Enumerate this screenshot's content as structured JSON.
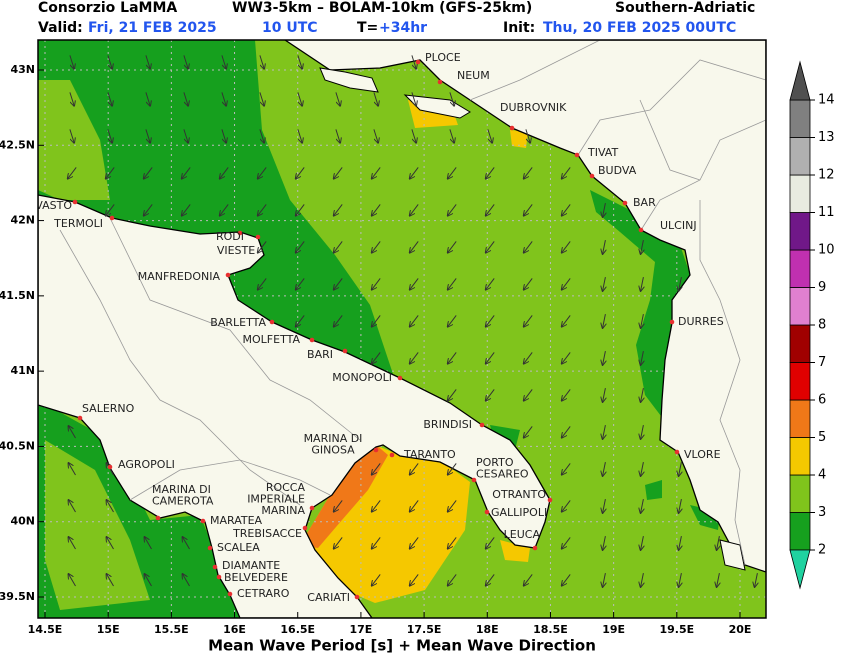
{
  "header": {
    "left": "Consorzio LaMMA",
    "center": "WW3-5km – BOLAM-10km (GFS-25km)",
    "right": "Southern-Adriatic",
    "valid_label": "Valid:",
    "valid_date": "Fri, 21 FEB 2025",
    "valid_time": "10 UTC",
    "lead_label": "T=",
    "lead": "+34hr",
    "init_label": "Init:",
    "init": "Thu, 20 FEB 2025 00UTC"
  },
  "map": {
    "grid": true,
    "lat_ticks": [
      {
        "value": 43,
        "label": "43N"
      },
      {
        "value": 42.5,
        "label": "42.5N"
      },
      {
        "value": 42,
        "label": "42N"
      },
      {
        "value": 41.5,
        "label": "41.5N"
      },
      {
        "value": 41,
        "label": "41N"
      },
      {
        "value": 40.5,
        "label": "40.5N"
      },
      {
        "value": 40,
        "label": "40N"
      },
      {
        "value": 39.5,
        "label": "39.5N"
      }
    ],
    "lon_ticks": [
      {
        "value": 14.5,
        "label": "14.5E"
      },
      {
        "value": 15,
        "label": "15E"
      },
      {
        "value": 15.5,
        "label": "15.5E"
      },
      {
        "value": 16,
        "label": "16E"
      },
      {
        "value": 16.5,
        "label": "16.5E"
      },
      {
        "value": 17,
        "label": "17E"
      },
      {
        "value": 17.5,
        "label": "17.5E"
      },
      {
        "value": 18,
        "label": "18E"
      },
      {
        "value": 18.5,
        "label": "18.5E"
      },
      {
        "value": 19,
        "label": "19E"
      },
      {
        "value": 19.5,
        "label": "19.5E"
      },
      {
        "value": 20,
        "label": "20E"
      }
    ]
  },
  "cities": [
    {
      "lines": [
        "PLOCE"
      ]
    },
    {
      "lines": [
        "NEUM"
      ]
    },
    {
      "lines": [
        "DUBROVNIK"
      ]
    },
    {
      "lines": [
        "TIVAT"
      ]
    },
    {
      "lines": [
        "BUDVA"
      ]
    },
    {
      "lines": [
        "BAR"
      ]
    },
    {
      "lines": [
        "ULCINJ"
      ]
    },
    {
      "lines": [
        "DURRES"
      ]
    },
    {
      "lines": [
        "VLORE"
      ]
    },
    {
      "lines": [
        "VASTO"
      ]
    },
    {
      "lines": [
        "TERMOLI"
      ]
    },
    {
      "lines": [
        "RODI"
      ]
    },
    {
      "lines": [
        "VIESTE"
      ]
    },
    {
      "lines": [
        "MANFREDONIA"
      ]
    },
    {
      "lines": [
        "BARLETTA"
      ]
    },
    {
      "lines": [
        "MOLFETTA"
      ]
    },
    {
      "lines": [
        "BARI"
      ]
    },
    {
      "lines": [
        "MONOPOLI"
      ]
    },
    {
      "lines": [
        "SALERNO"
      ]
    },
    {
      "lines": [
        "BRINDISI"
      ]
    },
    {
      "lines": [
        "MARINA DI",
        "GINOSA"
      ]
    },
    {
      "lines": [
        "TARANTO"
      ]
    },
    {
      "lines": [
        "PORTO",
        "CESAREO"
      ]
    },
    {
      "lines": [
        "OTRANTO"
      ]
    },
    {
      "lines": [
        "GALLIPOLI"
      ]
    },
    {
      "lines": [
        "LEUCA"
      ]
    },
    {
      "lines": [
        "AGROPOLI"
      ]
    },
    {
      "lines": [
        "MARINA DI",
        "CAMEROTA"
      ]
    },
    {
      "lines": [
        "MARATEA"
      ]
    },
    {
      "lines": [
        "ROCCA",
        "IMPERIALE",
        "MARINA"
      ]
    },
    {
      "lines": [
        "TREBISACCE"
      ]
    },
    {
      "lines": [
        "SCALEA"
      ]
    },
    {
      "lines": [
        "DIAMANTE"
      ]
    },
    {
      "lines": [
        "BELVEDERE"
      ]
    },
    {
      "lines": [
        "CETRARO"
      ]
    },
    {
      "lines": [
        "CARIATI"
      ]
    }
  ],
  "colorbar": {
    "ticks": [
      2,
      3,
      4,
      5,
      6,
      7,
      8,
      9,
      10,
      11,
      12,
      13,
      14
    ],
    "colors": [
      "#16a01e",
      "#80c41c",
      "#f5c800",
      "#f07818",
      "#e00000",
      "#a00000",
      "#e080d0",
      "#c030b0",
      "#701888",
      "#e8ece0",
      "#b0b0b0",
      "#808080"
    ],
    "under_color": "#20d2a0",
    "over_color": "#505050"
  },
  "footer": "Mean Wave Period [s] + Mean Wave Direction"
}
